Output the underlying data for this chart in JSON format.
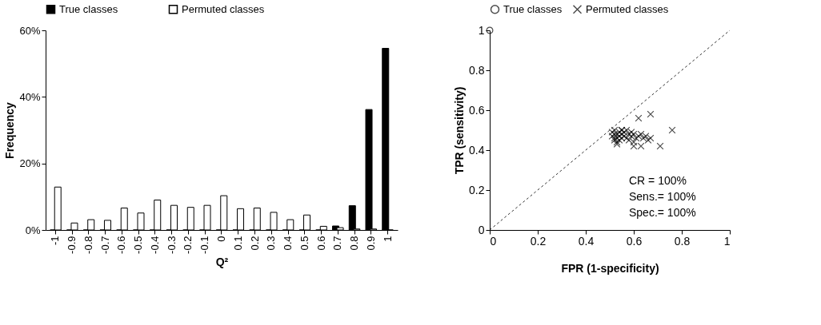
{
  "chart_data": [
    {
      "type": "bar",
      "xlabel": "Q²",
      "ylabel": "Frequency",
      "legend": "top",
      "grid": false,
      "categories": [
        "-1",
        "-0.9",
        "-0.8",
        "-0.7",
        "-0.6",
        "-0.5",
        "-0.4",
        "-0.3",
        "-0.2",
        "-0.1",
        "0",
        "0.1",
        "0.2",
        "0.3",
        "0.4",
        "0.5",
        "0.6",
        "0.7",
        "0.8",
        "0.9",
        "1"
      ],
      "series": [
        {
          "name": "True classes",
          "color": "#000000",
          "values": [
            0,
            0,
            0,
            0,
            0,
            0,
            0,
            0,
            0,
            0,
            0,
            0,
            0,
            0,
            0,
            0,
            0,
            1.2,
            7.3,
            36.2,
            54.6
          ]
        },
        {
          "name": "Permuted classes",
          "color": "#ffffff",
          "values": [
            12.9,
            2.1,
            3.1,
            2.9,
            6.6,
            5.1,
            9.0,
            7.4,
            6.8,
            7.4,
            10.3,
            6.4,
            6.6,
            5.3,
            3.1,
            4.5,
            1.1,
            0.7,
            0.3,
            0.3,
            0
          ]
        }
      ],
      "ylim": [
        0,
        60
      ],
      "yticks": [
        {
          "value": 0,
          "label": "0%"
        },
        {
          "value": 20,
          "label": "20%"
        },
        {
          "value": 40,
          "label": "40%"
        },
        {
          "value": 60,
          "label": "60%"
        }
      ]
    },
    {
      "type": "scatter",
      "xlabel": "FPR (1-specificity)",
      "ylabel": "TPR (sensitivity)",
      "legend": "top",
      "grid": false,
      "xlim": [
        0,
        1
      ],
      "ylim": [
        0,
        1
      ],
      "xticks": [
        0,
        0.2,
        0.4,
        0.6,
        0.8,
        1
      ],
      "yticks": [
        0,
        0.2,
        0.4,
        0.6,
        0.8,
        1
      ],
      "series": [
        {
          "name": "True classes",
          "color": "#000000",
          "marker": "circle",
          "x": [
            0
          ],
          "values": [
            1
          ]
        },
        {
          "name": "Permuted classes",
          "color": "#000000",
          "marker": "cross",
          "x": [
            0.51,
            0.51,
            0.52,
            0.52,
            0.52,
            0.53,
            0.53,
            0.53,
            0.54,
            0.54,
            0.54,
            0.55,
            0.55,
            0.55,
            0.56,
            0.56,
            0.57,
            0.57,
            0.58,
            0.58,
            0.59,
            0.59,
            0.6,
            0.6,
            0.61,
            0.62,
            0.63,
            0.64,
            0.65,
            0.66,
            0.62,
            0.67,
            0.76,
            0.71,
            0.63,
            0.6,
            0.67,
            0.53,
            0.52,
            0.55
          ],
          "values": [
            0.47,
            0.49,
            0.45,
            0.48,
            0.5,
            0.46,
            0.48,
            0.44,
            0.47,
            0.49,
            0.45,
            0.48,
            0.46,
            0.5,
            0.47,
            0.49,
            0.46,
            0.5,
            0.48,
            0.45,
            0.49,
            0.47,
            0.48,
            0.44,
            0.46,
            0.47,
            0.48,
            0.46,
            0.47,
            0.45,
            0.56,
            0.58,
            0.5,
            0.42,
            0.42,
            0.42,
            0.46,
            0.43,
            0.46,
            0.5
          ]
        },
        {
          "type": "line",
          "line_style": "dashed",
          "color": "#000000",
          "x": [
            0,
            1
          ],
          "values": [
            0,
            1
          ]
        }
      ],
      "annotations": [
        "CR = 100%",
        "Sens.= 100%",
        "Spec.= 100%"
      ]
    }
  ]
}
